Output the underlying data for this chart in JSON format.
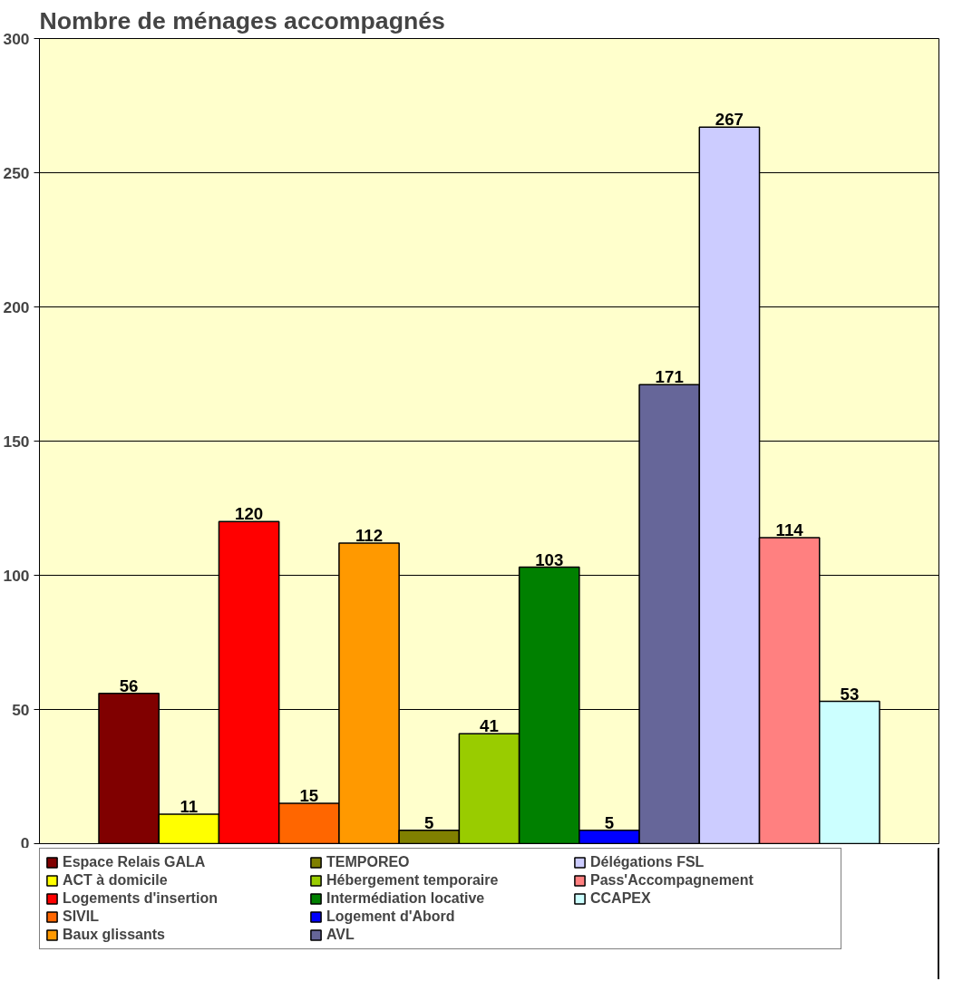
{
  "chart_data": {
    "type": "bar",
    "title": "Nombre de ménages accompagnés",
    "categories": [
      null
    ],
    "series": [
      {
        "name": "Espace Relais GALA",
        "color": "#800000",
        "values": [
          56
        ]
      },
      {
        "name": "ACT à domicile",
        "color": "#ffff00",
        "values": [
          11
        ]
      },
      {
        "name": "Logements d'insertion",
        "color": "#ff0000",
        "values": [
          120
        ]
      },
      {
        "name": "SIVIL",
        "color": "#ff6600",
        "values": [
          15
        ]
      },
      {
        "name": "Baux glissants",
        "color": "#ff9900",
        "values": [
          112
        ]
      },
      {
        "name": "TEMPOREO",
        "color": "#808000",
        "values": [
          5
        ]
      },
      {
        "name": "Hébergement temporaire",
        "color": "#99cc00",
        "values": [
          41
        ]
      },
      {
        "name": "Intermédiation locative",
        "color": "#008000",
        "values": [
          103
        ]
      },
      {
        "name": "Logement d'Abord",
        "color": "#0000ff",
        "values": [
          5
        ]
      },
      {
        "name": "AVL",
        "color": "#666699",
        "values": [
          171
        ]
      },
      {
        "name": "Délégations FSL",
        "color": "#ccccff",
        "values": [
          267
        ]
      },
      {
        "name": "Pass'Accompagnement",
        "color": "#ff8080",
        "values": [
          114
        ]
      },
      {
        "name": "CCAPEX",
        "color": "#ccffff",
        "values": [
          53
        ]
      }
    ],
    "ylim": [
      0,
      300
    ],
    "yticks": [
      0,
      50,
      100,
      150,
      200,
      250,
      300
    ],
    "grid": "y",
    "legend": "bottom",
    "data_labels": true,
    "tick_labels": "y"
  }
}
